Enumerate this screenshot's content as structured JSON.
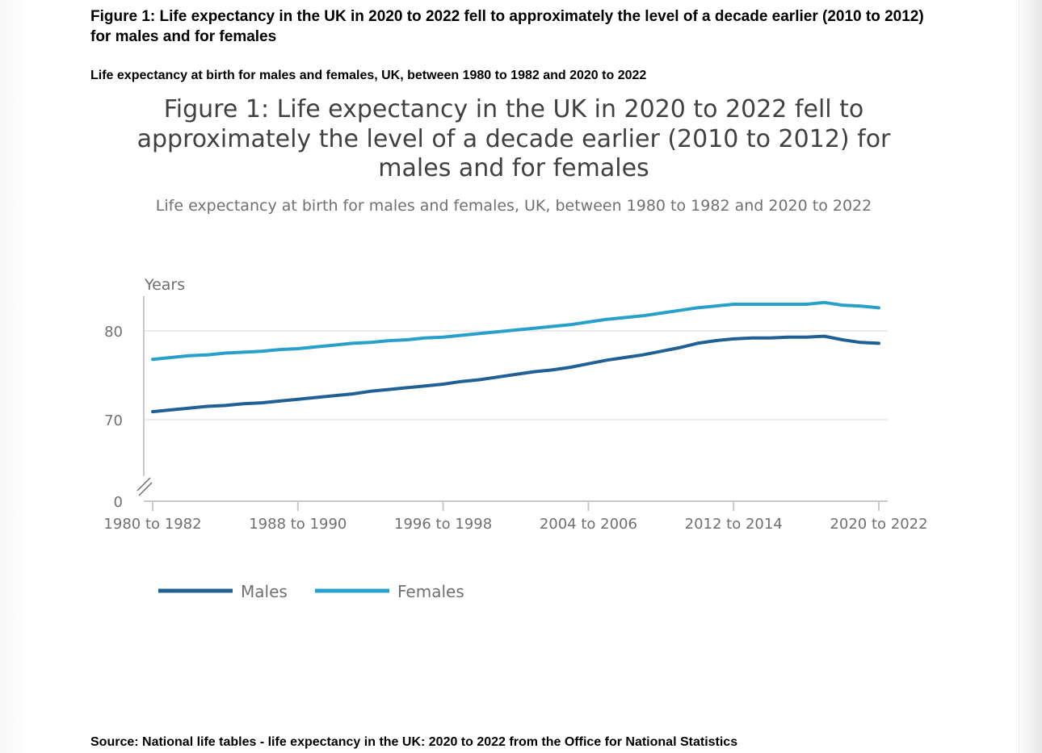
{
  "document": {
    "title": "Figure 1: Life expectancy in the UK in 2020 to 2022 fell to approximately the level of a decade earlier (2010 to 2012) for males and for females",
    "subtitle": "Life expectancy at birth for males and females, UK, between 1980 to 1982 and 2020 to 2022",
    "source": "Source: National life tables - life expectancy in the UK: 2020 to 2022 from the Office for National Statistics"
  },
  "chart_data": {
    "type": "line",
    "title_lines": [
      "Figure 1: Life expectancy in the UK in 2020 to 2022 fell to",
      "approximately the level of a decade earlier (2010 to 2012) for",
      "males and for females"
    ],
    "subtitle": "Life expectancy at birth for males and females, UK, between 1980 to 1982 and 2020 to 2022",
    "ylabel": "Years",
    "y_axis_break": true,
    "y_ticks": [
      0,
      70,
      80
    ],
    "ylim": [
      0,
      84
    ],
    "x_tick_labels": [
      "1980 to 1982",
      "1988 to 1990",
      "1996 to 1998",
      "2004 to 2006",
      "2012 to 2014",
      "2020 to 2022"
    ],
    "x": [
      "1980 to 1982",
      "1981 to 1983",
      "1982 to 1984",
      "1983 to 1985",
      "1984 to 1986",
      "1985 to 1987",
      "1986 to 1988",
      "1987 to 1989",
      "1988 to 1990",
      "1989 to 1991",
      "1990 to 1992",
      "1991 to 1993",
      "1992 to 1994",
      "1993 to 1995",
      "1994 to 1996",
      "1995 to 1997",
      "1996 to 1998",
      "1997 to 1999",
      "1998 to 2000",
      "1999 to 2001",
      "2000 to 2002",
      "2001 to 2003",
      "2002 to 2004",
      "2003 to 2005",
      "2004 to 2006",
      "2005 to 2007",
      "2006 to 2008",
      "2007 to 2009",
      "2008 to 2010",
      "2009 to 2011",
      "2010 to 2012",
      "2011 to 2013",
      "2012 to 2014",
      "2013 to 2015",
      "2014 to 2016",
      "2015 to 2017",
      "2016 to 2018",
      "2017 to 2019",
      "2018 to 2020",
      "2019 to 2021",
      "2020 to 2022"
    ],
    "series": [
      {
        "name": "Males",
        "color": "#206095",
        "values": [
          70.9,
          71.1,
          71.3,
          71.5,
          71.6,
          71.8,
          71.9,
          72.1,
          72.3,
          72.5,
          72.7,
          72.9,
          73.2,
          73.4,
          73.6,
          73.8,
          74.0,
          74.3,
          74.5,
          74.8,
          75.1,
          75.4,
          75.6,
          75.9,
          76.3,
          76.7,
          77.0,
          77.3,
          77.7,
          78.1,
          78.6,
          78.9,
          79.1,
          79.2,
          79.2,
          79.3,
          79.3,
          79.4,
          79.0,
          78.7,
          78.6
        ]
      },
      {
        "name": "Females",
        "color": "#27a0cc",
        "values": [
          76.8,
          77.0,
          77.2,
          77.3,
          77.5,
          77.6,
          77.7,
          77.9,
          78.0,
          78.2,
          78.4,
          78.6,
          78.7,
          78.9,
          79.0,
          79.2,
          79.3,
          79.5,
          79.7,
          79.9,
          80.1,
          80.3,
          80.5,
          80.7,
          81.0,
          81.3,
          81.5,
          81.7,
          82.0,
          82.3,
          82.6,
          82.8,
          83.0,
          83.0,
          83.0,
          83.0,
          83.0,
          83.2,
          82.9,
          82.8,
          82.6
        ]
      }
    ],
    "legend": "bottom-left",
    "grid": true
  }
}
